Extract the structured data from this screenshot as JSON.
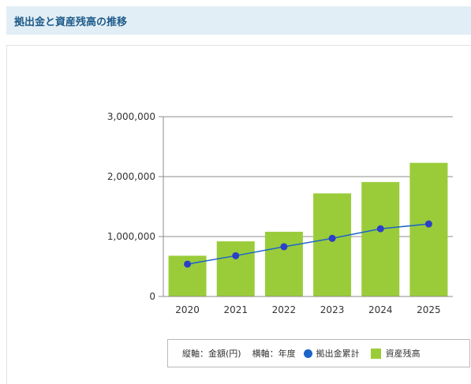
{
  "header": {
    "title": "拠出金と資産残高の推移"
  },
  "legend": {
    "vertical_axis": "縦軸：金額(円)",
    "horizontal_axis": "横軸：年度",
    "line_label": "拠出金累計",
    "bar_label": "資産残高"
  },
  "colors": {
    "bar": "#9acc3a",
    "line": "#1d64c8",
    "header_bg": "#e2eef5",
    "title": "#1e5b8a"
  },
  "chart_data": {
    "type": "bar",
    "categories": [
      "2020",
      "2021",
      "2022",
      "2023",
      "2024",
      "2025"
    ],
    "ylim": [
      0,
      3000000
    ],
    "yticks": [
      0,
      1000000,
      2000000,
      3000000
    ],
    "ytick_labels": [
      "0",
      "1,000,000",
      "2,000,000",
      "3,000,000"
    ],
    "grid": true,
    "legend_position": "bottom-right",
    "series": [
      {
        "name": "資産残高",
        "type": "bar",
        "values": [
          680000,
          920000,
          1080000,
          1720000,
          1910000,
          2230000
        ]
      },
      {
        "name": "拠出金累計",
        "type": "line",
        "values": [
          540000,
          680000,
          830000,
          970000,
          1130000,
          1210000
        ]
      }
    ]
  }
}
